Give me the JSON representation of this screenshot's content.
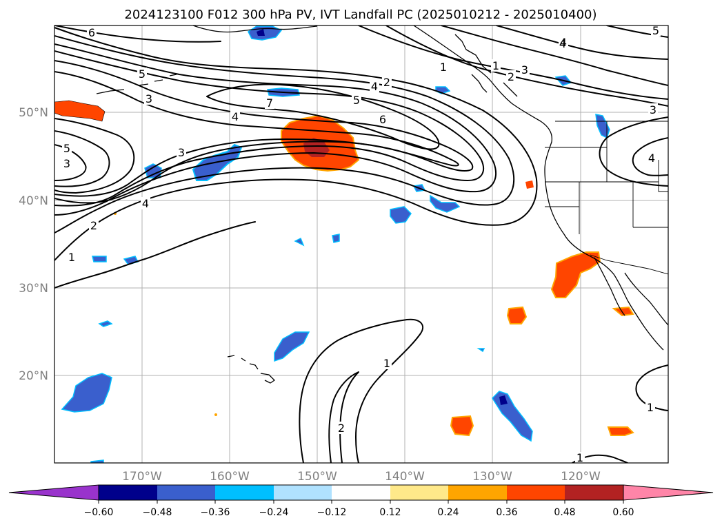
{
  "title": "2024123100 F012 300 hPa PV, IVT Landfall PC (2025010212 - 2025010400)",
  "lon_labels": [
    "170°W",
    "160°W",
    "150°W",
    "140°W",
    "130°W",
    "120°W"
  ],
  "lat_labels": [
    "50°N",
    "40°N",
    "30°N",
    "20°N"
  ],
  "colorbar": {
    "ticks": [
      "−0.60",
      "−0.48",
      "−0.36",
      "−0.24",
      "−0.12",
      "0.12",
      "0.24",
      "0.36",
      "0.48",
      "0.60"
    ],
    "colors": {
      "under": "#9933cc",
      "neg_060_048": "#00008b",
      "neg_048_036": "#3a5fcd",
      "neg_036_024": "#00bfff",
      "neg_024_012": "#b0e2ff",
      "neutral": "#ffffff",
      "pos_012_024": "#ffe98a",
      "pos_024_036": "#ffa500",
      "pos_036_048": "#ff4500",
      "pos_048_060": "#b22222",
      "over": "#ff85a8"
    }
  },
  "contour_labels": [
    "6",
    "5",
    "3",
    "5",
    "3",
    "4",
    "3",
    "4",
    "2",
    "1",
    "7",
    "5",
    "6",
    "4",
    "2",
    "1",
    "1",
    "2",
    "4",
    "3",
    "5",
    "3",
    "4",
    "1",
    "1",
    "2",
    "1"
  ],
  "map_extent": {
    "lon": [
      -180,
      -110
    ],
    "lat": [
      10,
      60
    ]
  },
  "grid": true
}
